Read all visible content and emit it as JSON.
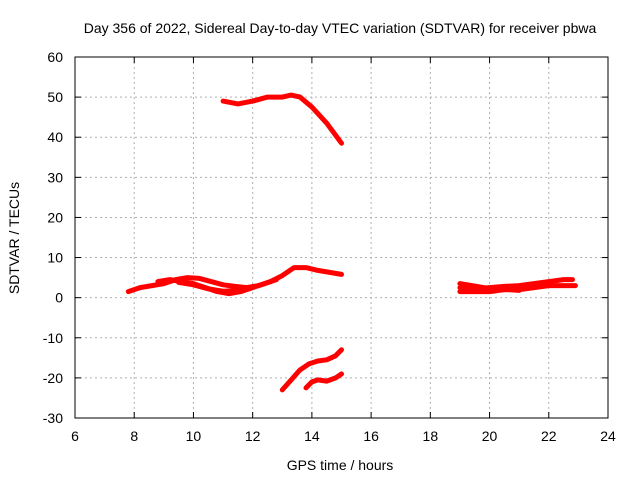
{
  "chart_data": {
    "type": "line",
    "title": "Day 356 of 2022, Sidereal Day-to-day VTEC variation (SDTVAR) for receiver pbwa",
    "xlabel": "GPS time / hours",
    "ylabel": "SDTVAR / TECUs",
    "xlim": [
      6,
      24
    ],
    "ylim": [
      -30,
      60
    ],
    "xticks": [
      6,
      8,
      10,
      12,
      14,
      16,
      18,
      20,
      22,
      24
    ],
    "yticks": [
      -30,
      -20,
      -10,
      0,
      10,
      20,
      30,
      40,
      50,
      60
    ],
    "xtick_labels": [
      "6",
      "8",
      "10",
      "12",
      "14",
      "16",
      "18",
      "20",
      "22",
      "24"
    ],
    "ytick_labels": [
      "-30",
      "-20",
      "-10",
      "0",
      "10",
      "20",
      "30",
      "40",
      "50",
      "60"
    ],
    "grid": true,
    "color": "#ff0000",
    "series": [
      {
        "name": "sat-high",
        "x": [
          11.0,
          11.5,
          12.0,
          12.5,
          13.0,
          13.3,
          13.6,
          14.0,
          14.5,
          15.0
        ],
        "y": [
          49,
          48.3,
          49,
          50,
          50,
          50.5,
          50,
          47.5,
          43.5,
          38.5
        ]
      },
      {
        "name": "sat-a",
        "x": [
          7.8,
          8.2,
          8.6,
          9.0,
          9.4,
          9.8,
          10.2,
          10.6,
          11.0,
          11.4,
          11.8,
          12.2,
          12.6,
          13.0,
          13.4,
          13.8,
          14.2,
          14.6,
          15.0
        ],
        "y": [
          1.5,
          2.5,
          3,
          3.5,
          4.5,
          5,
          4.8,
          4,
          3.2,
          2.8,
          2.5,
          3,
          4,
          5.5,
          7.5,
          7.5,
          6.8,
          6.3,
          5.8
        ]
      },
      {
        "name": "sat-b",
        "x": [
          8.8,
          9.2,
          9.6,
          10.0,
          10.4,
          10.8,
          11.2,
          11.6,
          12.0,
          12.4,
          12.8
        ],
        "y": [
          4,
          4.5,
          4,
          3.5,
          2.5,
          1.5,
          1,
          1.5,
          2.5,
          3.5,
          4.5
        ]
      },
      {
        "name": "sat-c",
        "x": [
          9.5,
          10.0,
          10.5,
          11.0,
          11.5
        ],
        "y": [
          3.8,
          3.2,
          2.2,
          1.6,
          1.8
        ]
      },
      {
        "name": "sat-d",
        "x": [
          19.0,
          19.5,
          20.0,
          20.5,
          21.0,
          21.5,
          22.0,
          22.5,
          22.8
        ],
        "y": [
          2.5,
          2.2,
          2.5,
          2.8,
          3,
          3.5,
          4,
          4.5,
          4.5
        ]
      },
      {
        "name": "sat-e",
        "x": [
          19.0,
          19.5,
          20.0,
          20.5,
          21.0,
          21.5,
          22.0,
          22.5,
          22.9
        ],
        "y": [
          1.5,
          1.5,
          1.5,
          2,
          2,
          2.5,
          3,
          3,
          3
        ]
      },
      {
        "name": "sat-f",
        "x": [
          19.0,
          19.4,
          19.8,
          20.2,
          20.6,
          21.0
        ],
        "y": [
          3.5,
          3,
          2.5,
          2,
          2,
          1.8
        ]
      },
      {
        "name": "sat-g",
        "x": [
          13.0,
          13.3,
          13.6,
          13.9,
          14.2,
          14.5,
          14.8,
          15.0
        ],
        "y": [
          -23,
          -20.5,
          -18,
          -16.5,
          -15.8,
          -15.5,
          -14.5,
          -13
        ]
      },
      {
        "name": "sat-h",
        "x": [
          13.8,
          14.0,
          14.2,
          14.5,
          14.8,
          15.0
        ],
        "y": [
          -22.5,
          -21,
          -20.5,
          -20.8,
          -20,
          -19
        ]
      }
    ]
  }
}
